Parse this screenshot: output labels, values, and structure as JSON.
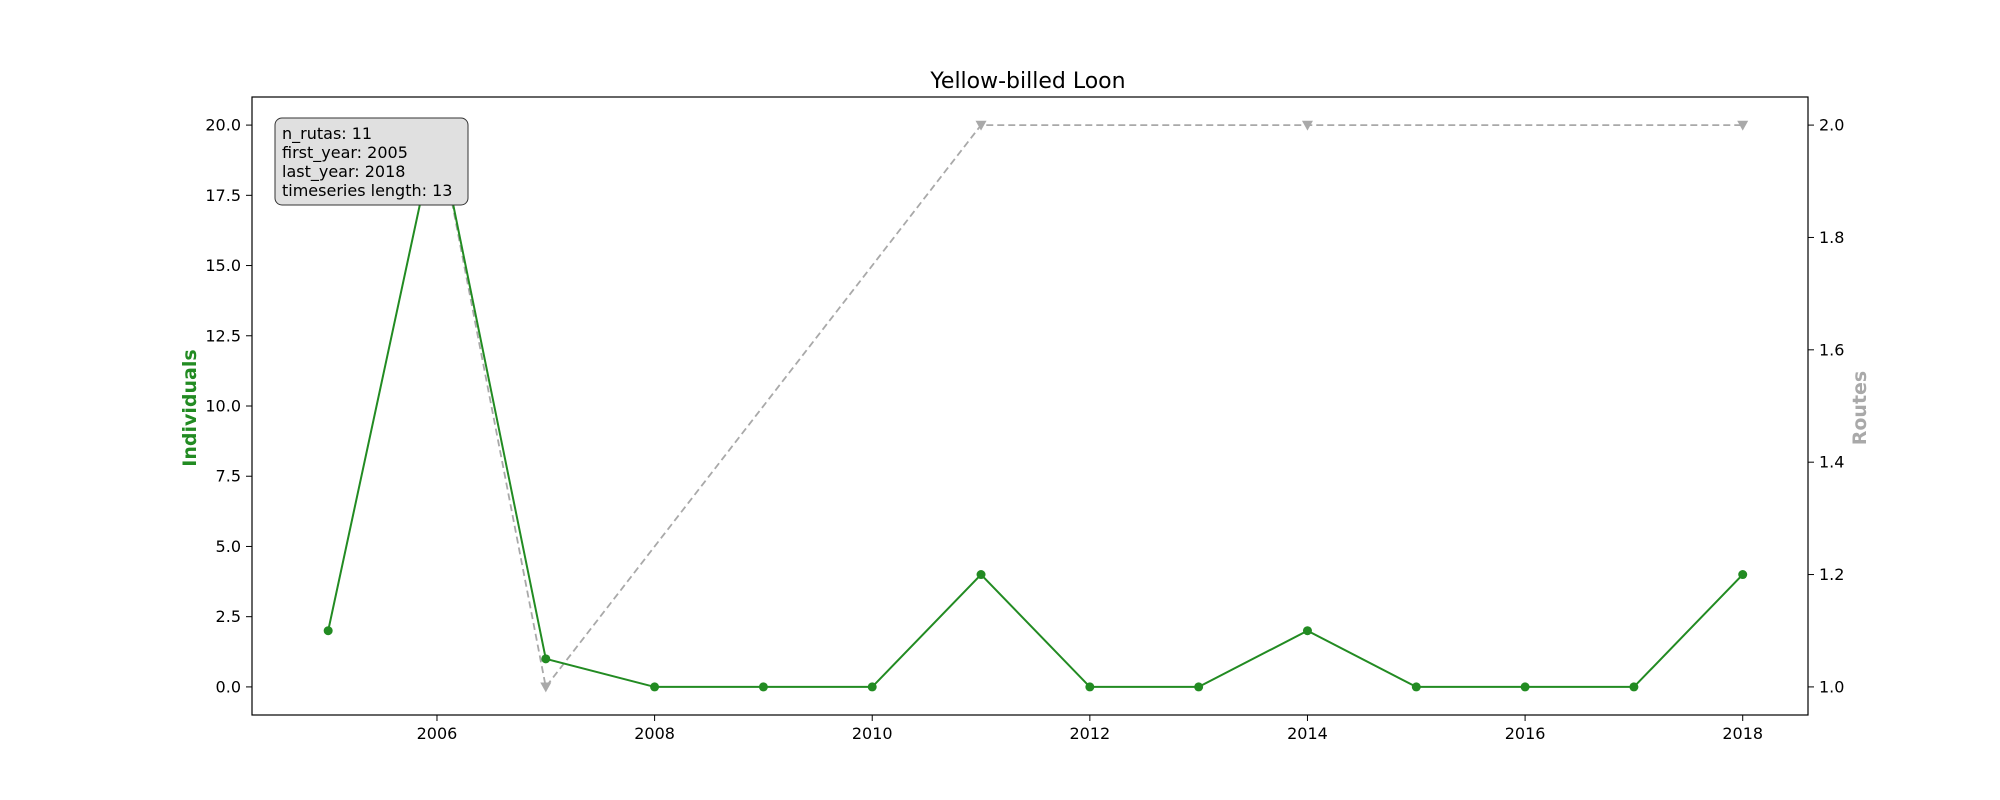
{
  "chart_data": {
    "type": "line",
    "title": "Yellow-billed Loon",
    "xlabel": "",
    "x": [
      2005,
      2006,
      2007,
      2008,
      2009,
      2010,
      2011,
      2012,
      2013,
      2014,
      2015,
      2016,
      2017,
      2018
    ],
    "xlim": [
      2004.3,
      2018.6
    ],
    "x_ticks": [
      "2006",
      "2008",
      "2010",
      "2012",
      "2014",
      "2016",
      "2018"
    ],
    "left_axis": {
      "label": "Individuals",
      "color": "#228b22",
      "ylim": [
        -1.0,
        21.0
      ],
      "ticks": [
        "0.0",
        "2.5",
        "5.0",
        "7.5",
        "10.0",
        "12.5",
        "15.0",
        "17.5",
        "20.0"
      ]
    },
    "right_axis": {
      "label": "Routes",
      "color": "#a9a9a9",
      "ylim": [
        0.95,
        2.05
      ],
      "ticks": [
        "1.0",
        "1.2",
        "1.4",
        "1.6",
        "1.8",
        "2.0"
      ]
    },
    "series": [
      {
        "axis": "left",
        "color": "#228b22",
        "linestyle": "solid",
        "marker": "circle",
        "x": [
          2005,
          2006,
          2007,
          2008,
          2009,
          2010,
          2011,
          2012,
          2013,
          2014,
          2015,
          2016,
          2017,
          2018
        ],
        "values": [
          2,
          20,
          1,
          0,
          0,
          0,
          4,
          0,
          0,
          2,
          0,
          0,
          0,
          4
        ]
      },
      {
        "axis": "right",
        "color": "#a9a9a9",
        "linestyle": "dashed",
        "marker": "triangle-down",
        "x": [
          2005,
          2006,
          2007,
          2011,
          2014,
          2018
        ],
        "values": [
          2,
          2,
          1,
          2,
          2,
          2
        ]
      }
    ],
    "annotation_box": {
      "lines": [
        "n_rutas: 11",
        "first_year: 2005",
        "last_year: 2018",
        "timeseries length: 13"
      ],
      "background": "#e0e0e0"
    },
    "grid": false,
    "legend": "none"
  }
}
